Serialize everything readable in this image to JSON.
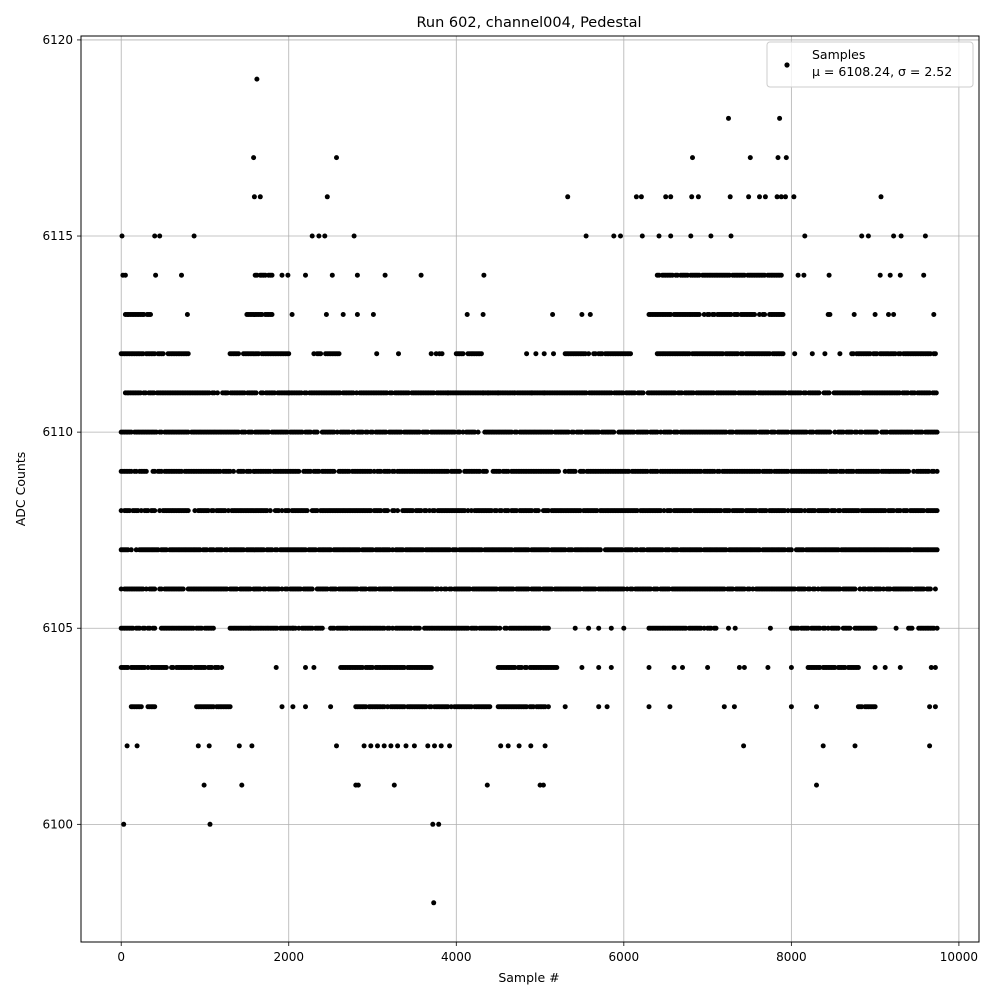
{
  "chart_data": {
    "type": "scatter",
    "title": "Run 602, channel004, Pedestal",
    "xlabel": "Sample #",
    "ylabel": "ADC Counts",
    "xlim": [
      -480,
      10240
    ],
    "ylim": [
      6097,
      6120.1
    ],
    "xticks": [
      0,
      2000,
      4000,
      6000,
      8000,
      10000
    ],
    "xtick_labels": [
      "0",
      "2000",
      "4000",
      "6000",
      "8000",
      "10000"
    ],
    "yticks": [
      6100,
      6105,
      6110,
      6115,
      6120
    ],
    "ytick_labels": [
      "6100",
      "6105",
      "6110",
      "6115",
      "6120"
    ],
    "grid": true,
    "legend": {
      "placement": "top-right",
      "entries": [
        "Samples",
        "μ = 6108.24, σ = 2.52"
      ]
    },
    "marker_color": "#000000",
    "series": [
      {
        "name": "Samples",
        "sampling": "every 20th sample, x from 0 to 9740",
        "bands": [
          {
            "y": 6106,
            "ranges": [
              [
                0,
                9740
              ]
            ]
          },
          {
            "y": 6107,
            "ranges": [
              [
                0,
                9740
              ]
            ]
          },
          {
            "y": 6108,
            "ranges": [
              [
                0,
                9740
              ]
            ]
          },
          {
            "y": 6109,
            "ranges": [
              [
                0,
                9740
              ]
            ]
          },
          {
            "y": 6110,
            "ranges": [
              [
                0,
                9740
              ]
            ]
          },
          {
            "y": 6111,
            "ranges": [
              [
                30,
                9740
              ]
            ]
          },
          {
            "y": 6105,
            "ranges": [
              [
                0,
                1100
              ],
              [
                1300,
                2400
              ],
              [
                2500,
                5100
              ],
              [
                6300,
                7100
              ],
              [
                8000,
                9000
              ],
              [
                9400,
                9740
              ]
            ]
          },
          {
            "y": 6112,
            "ranges": [
              [
                0,
                800
              ],
              [
                1300,
                2000
              ],
              [
                2300,
                2600
              ],
              [
                4000,
                4300
              ],
              [
                5300,
                6100
              ],
              [
                6400,
                7900
              ],
              [
                8700,
                9740
              ]
            ]
          },
          {
            "y": 6104,
            "ranges": [
              [
                0,
                1200
              ],
              [
                2600,
                3700
              ],
              [
                4500,
                5200
              ],
              [
                8200,
                8800
              ]
            ]
          },
          {
            "y": 6103,
            "ranges": [
              [
                100,
                400
              ],
              [
                900,
                1300
              ],
              [
                2800,
                4400
              ],
              [
                4500,
                5100
              ],
              [
                8800,
                9000
              ]
            ]
          },
          {
            "y": 6113,
            "ranges": [
              [
                50,
                350
              ],
              [
                1500,
                1800
              ],
              [
                6300,
                7900
              ]
            ]
          },
          {
            "y": 6114,
            "ranges": [
              [
                1600,
                1800
              ],
              [
                6400,
                7900
              ]
            ]
          }
        ],
        "points": [
          [
            10,
            6115
          ],
          [
            400,
            6115
          ],
          [
            460,
            6115
          ],
          [
            870,
            6115
          ],
          [
            2280,
            6115
          ],
          [
            2360,
            6115
          ],
          [
            2430,
            6115
          ],
          [
            2780,
            6115
          ],
          [
            5550,
            6115
          ],
          [
            5880,
            6115
          ],
          [
            5960,
            6115
          ],
          [
            6220,
            6115
          ],
          [
            6420,
            6115
          ],
          [
            6560,
            6115
          ],
          [
            6800,
            6115
          ],
          [
            7040,
            6115
          ],
          [
            7280,
            6115
          ],
          [
            8160,
            6115
          ],
          [
            8840,
            6115
          ],
          [
            8920,
            6115
          ],
          [
            9220,
            6115
          ],
          [
            9310,
            6115
          ],
          [
            9600,
            6115
          ],
          [
            20,
            6114
          ],
          [
            50,
            6114
          ],
          [
            410,
            6114
          ],
          [
            720,
            6114
          ],
          [
            1920,
            6114
          ],
          [
            2200,
            6114
          ],
          [
            2520,
            6114
          ],
          [
            2820,
            6114
          ],
          [
            3150,
            6114
          ],
          [
            3580,
            6114
          ],
          [
            4330,
            6114
          ],
          [
            8450,
            6114
          ],
          [
            9060,
            6114
          ],
          [
            9180,
            6114
          ],
          [
            9300,
            6114
          ],
          [
            9580,
            6114
          ],
          [
            3010,
            6113
          ],
          [
            4130,
            6113
          ],
          [
            4320,
            6113
          ],
          [
            5150,
            6113
          ],
          [
            5500,
            6113
          ],
          [
            5600,
            6113
          ],
          [
            8440,
            6113
          ],
          [
            8750,
            6113
          ],
          [
            9000,
            6113
          ],
          [
            9700,
            6113
          ],
          [
            1590,
            6116
          ],
          [
            1660,
            6116
          ],
          [
            2460,
            6116
          ],
          [
            5330,
            6116
          ],
          [
            6150,
            6116
          ],
          [
            6210,
            6116
          ],
          [
            6500,
            6116
          ],
          [
            6560,
            6116
          ],
          [
            6810,
            6116
          ],
          [
            6890,
            6116
          ],
          [
            7270,
            6116
          ],
          [
            7490,
            6116
          ],
          [
            7620,
            6116
          ],
          [
            7690,
            6116
          ],
          [
            7830,
            6116
          ],
          [
            7880,
            6116
          ],
          [
            7930,
            6116
          ],
          [
            8030,
            6116
          ],
          [
            9070,
            6116
          ],
          [
            1580,
            6117
          ],
          [
            2570,
            6117
          ],
          [
            6820,
            6117
          ],
          [
            7510,
            6117
          ],
          [
            7840,
            6117
          ],
          [
            7940,
            6117
          ],
          [
            7250,
            6118
          ],
          [
            7860,
            6118
          ],
          [
            1620,
            6119
          ],
          [
            30,
            6100
          ],
          [
            1060,
            6100
          ],
          [
            3720,
            6100
          ],
          [
            3790,
            6100
          ],
          [
            3730,
            6098
          ],
          [
            990,
            6101
          ],
          [
            1440,
            6101
          ],
          [
            2800,
            6101
          ],
          [
            2830,
            6101
          ],
          [
            3260,
            6101
          ],
          [
            4370,
            6101
          ],
          [
            5000,
            6101
          ],
          [
            5040,
            6101
          ],
          [
            8300,
            6101
          ],
          [
            70,
            6102
          ],
          [
            190,
            6102
          ],
          [
            920,
            6102
          ],
          [
            1050,
            6102
          ],
          [
            1410,
            6102
          ],
          [
            1560,
            6102
          ],
          [
            2570,
            6102
          ],
          [
            2900,
            6102
          ],
          [
            2980,
            6102
          ],
          [
            3060,
            6102
          ],
          [
            3140,
            6102
          ],
          [
            3220,
            6102
          ],
          [
            3300,
            6102
          ],
          [
            3400,
            6102
          ],
          [
            3500,
            6102
          ],
          [
            3660,
            6102
          ],
          [
            3740,
            6102
          ],
          [
            3820,
            6102
          ],
          [
            3920,
            6102
          ],
          [
            4530,
            6102
          ],
          [
            4620,
            6102
          ],
          [
            4750,
            6102
          ],
          [
            4890,
            6102
          ],
          [
            5060,
            6102
          ],
          [
            7430,
            6102
          ],
          [
            8380,
            6102
          ],
          [
            8760,
            6102
          ],
          [
            9650,
            6102
          ],
          [
            1920,
            6103
          ],
          [
            2050,
            6103
          ],
          [
            2200,
            6103
          ],
          [
            2500,
            6103
          ],
          [
            5300,
            6103
          ],
          [
            5700,
            6103
          ],
          [
            5800,
            6103
          ],
          [
            6300,
            6103
          ],
          [
            6550,
            6103
          ],
          [
            7200,
            6103
          ],
          [
            7320,
            6103
          ],
          [
            8000,
            6103
          ],
          [
            8300,
            6103
          ],
          [
            9650,
            6103
          ],
          [
            9720,
            6103
          ],
          [
            1850,
            6104
          ],
          [
            2200,
            6104
          ],
          [
            2300,
            6104
          ],
          [
            5500,
            6104
          ],
          [
            5700,
            6104
          ],
          [
            5850,
            6104
          ],
          [
            6300,
            6104
          ],
          [
            6600,
            6104
          ],
          [
            6700,
            6104
          ],
          [
            7000,
            6104
          ],
          [
            7380,
            6104
          ],
          [
            7440,
            6104
          ],
          [
            7720,
            6104
          ],
          [
            8000,
            6104
          ],
          [
            9000,
            6104
          ],
          [
            9120,
            6104
          ],
          [
            9300,
            6104
          ],
          [
            9670,
            6104
          ],
          [
            9720,
            6104
          ],
          [
            1540,
            6105
          ],
          [
            2050,
            6105
          ],
          [
            5420,
            6105
          ],
          [
            5580,
            6105
          ],
          [
            5700,
            6105
          ],
          [
            5850,
            6105
          ],
          [
            6000,
            6105
          ],
          [
            7250,
            6105
          ],
          [
            7330,
            6105
          ],
          [
            7750,
            6105
          ],
          [
            9250,
            6105
          ],
          [
            2450,
            6113
          ],
          [
            2650,
            6113
          ],
          [
            2820,
            6113
          ],
          [
            790,
            6113
          ],
          [
            1990,
            6114
          ],
          [
            3050,
            6112
          ],
          [
            3310,
            6112
          ],
          [
            3700,
            6112
          ],
          [
            3760,
            6112
          ],
          [
            3800,
            6112
          ],
          [
            3830,
            6112
          ],
          [
            4840,
            6112
          ],
          [
            4950,
            6112
          ],
          [
            5050,
            6112
          ],
          [
            5160,
            6112
          ],
          [
            8040,
            6112
          ],
          [
            8250,
            6112
          ],
          [
            8400,
            6112
          ],
          [
            8580,
            6112
          ],
          [
            3900,
            6111
          ],
          [
            4320,
            6111
          ],
          [
            4380,
            6111
          ],
          [
            4500,
            6111
          ],
          [
            4700,
            6111
          ],
          [
            4900,
            6111
          ],
          [
            5050,
            6111
          ],
          [
            1250,
            6111
          ],
          [
            2000,
            6111
          ],
          [
            2040,
            6113
          ],
          [
            8080,
            6114
          ],
          [
            8150,
            6114
          ],
          [
            8460,
            6113
          ],
          [
            9160,
            6113
          ],
          [
            9220,
            6113
          ]
        ]
      }
    ]
  }
}
